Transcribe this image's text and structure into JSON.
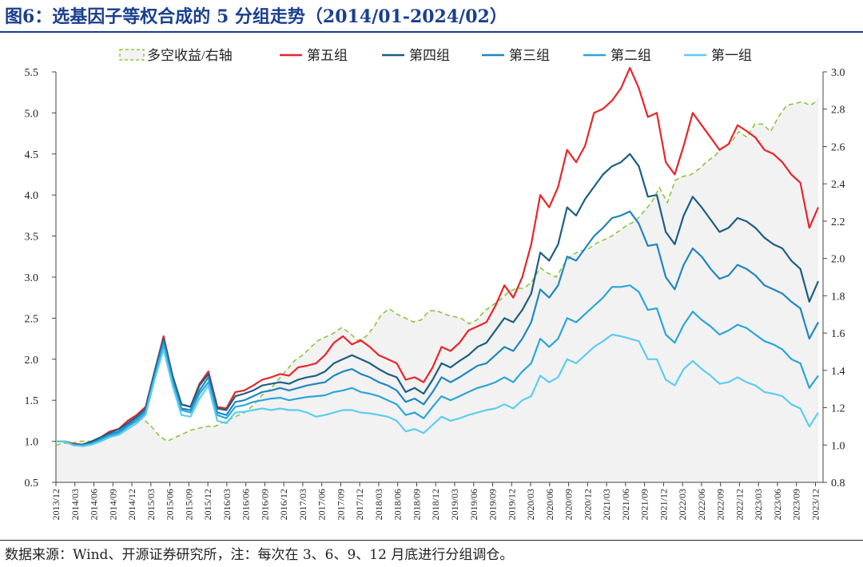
{
  "header": {
    "title": "图6：选基因子等权合成的 5 分组走势（2014/01-2024/02）"
  },
  "footer": {
    "source": "数据来源：Wind、开源证券研究所，注：每次在 3、6、9、12 月底进行分组调仓。"
  },
  "colors": {
    "group5": "#e8252a",
    "group4": "#1c5f82",
    "group3": "#1f86c0",
    "group2": "#2aa6d8",
    "group1": "#5ccdf0",
    "longshort": "#8cc63f",
    "area_fill": "#f2f2f2"
  },
  "chart_data": {
    "type": "line",
    "legend_position": "top",
    "grid": false,
    "ylim": [
      0.5,
      5.5
    ],
    "y_ticks": [
      "0.5",
      "1.0",
      "1.5",
      "2.0",
      "2.5",
      "3.0",
      "3.5",
      "4.0",
      "4.5",
      "5.0",
      "5.5"
    ],
    "y2lim": [
      0.8,
      3.0
    ],
    "y2_ticks": [
      "0.8",
      "1.0",
      "1.2",
      "1.4",
      "1.6",
      "1.8",
      "2.0",
      "2.2",
      "2.4",
      "2.6",
      "2.8",
      "3.0"
    ],
    "x_ticks": [
      "2013/12",
      "2014/03",
      "2014/06",
      "2014/09",
      "2014/12",
      "2015/03",
      "2015/06",
      "2015/09",
      "2015/12",
      "2016/03",
      "2016/06",
      "2016/09",
      "2016/12",
      "2017/03",
      "2017/06",
      "2017/09",
      "2017/12",
      "2018/03",
      "2018/06",
      "2018/09",
      "2018/12",
      "2019/03",
      "2019/06",
      "2019/09",
      "2019/12",
      "2020/03",
      "2020/06",
      "2020/09",
      "2020/12",
      "2021/03",
      "2021/06",
      "2021/09",
      "2021/12",
      "2022/03",
      "2022/06",
      "2022/09",
      "2022/12",
      "2023/03",
      "2023/06",
      "2023/09",
      "2023/12"
    ],
    "series": [
      {
        "name": "多空收益/右轴",
        "axis": "right",
        "kind": "area-dashed",
        "color": "#8cc63f",
        "values": [
          1.0,
          1.01,
          1.01,
          1.02,
          1.02,
          1.02,
          1.04,
          1.05,
          1.07,
          1.1,
          1.13,
          1.14,
          1.1,
          1.05,
          1.02,
          1.04,
          1.06,
          1.08,
          1.09,
          1.1,
          1.1,
          1.12,
          1.14,
          1.16,
          1.18,
          1.22,
          1.27,
          1.3,
          1.35,
          1.4,
          1.45,
          1.48,
          1.52,
          1.56,
          1.58,
          1.6,
          1.63,
          1.6,
          1.56,
          1.58,
          1.63,
          1.7,
          1.73,
          1.7,
          1.68,
          1.66,
          1.67,
          1.72,
          1.72,
          1.7,
          1.69,
          1.68,
          1.65,
          1.67,
          1.72,
          1.75,
          1.78,
          1.82,
          1.84,
          1.84,
          1.88,
          1.95,
          1.92,
          1.9,
          1.97,
          2.02,
          2.04,
          2.05,
          2.08,
          2.1,
          2.12,
          2.15,
          2.18,
          2.2,
          2.25,
          2.3,
          2.38,
          2.3,
          2.42,
          2.44,
          2.45,
          2.48,
          2.52,
          2.55,
          2.6,
          2.62,
          2.68,
          2.65,
          2.72,
          2.72,
          2.68,
          2.76,
          2.82,
          2.83,
          2.84,
          2.82,
          2.85
        ]
      },
      {
        "name": "第五组",
        "axis": "left",
        "kind": "line",
        "color": "#e8252a",
        "values": [
          1.0,
          1.0,
          0.97,
          0.96,
          1.0,
          1.05,
          1.12,
          1.15,
          1.25,
          1.32,
          1.42,
          1.85,
          2.28,
          1.8,
          1.45,
          1.42,
          1.7,
          1.85,
          1.42,
          1.4,
          1.6,
          1.62,
          1.68,
          1.75,
          1.78,
          1.82,
          1.8,
          1.9,
          1.92,
          1.95,
          2.05,
          2.2,
          2.28,
          2.18,
          2.23,
          2.15,
          2.05,
          2.0,
          1.95,
          1.75,
          1.78,
          1.72,
          1.9,
          2.15,
          2.1,
          2.2,
          2.35,
          2.4,
          2.45,
          2.65,
          2.9,
          2.75,
          3.0,
          3.4,
          4.0,
          3.85,
          4.1,
          4.55,
          4.4,
          4.6,
          5.0,
          5.05,
          5.15,
          5.3,
          5.55,
          5.3,
          4.95,
          5.0,
          4.4,
          4.25,
          4.6,
          5.0,
          4.85,
          4.7,
          4.55,
          4.62,
          4.85,
          4.78,
          4.7,
          4.55,
          4.5,
          4.4,
          4.25,
          4.15,
          3.6,
          3.85
        ]
      },
      {
        "name": "第四组",
        "axis": "left",
        "kind": "line",
        "color": "#1c5f82",
        "values": [
          1.0,
          1.0,
          0.96,
          0.96,
          1.0,
          1.05,
          1.1,
          1.15,
          1.22,
          1.3,
          1.4,
          1.85,
          2.25,
          1.8,
          1.45,
          1.42,
          1.68,
          1.82,
          1.4,
          1.38,
          1.55,
          1.58,
          1.62,
          1.68,
          1.7,
          1.72,
          1.7,
          1.75,
          1.78,
          1.8,
          1.85,
          1.95,
          2.0,
          2.05,
          2.0,
          1.95,
          1.88,
          1.82,
          1.78,
          1.6,
          1.65,
          1.58,
          1.75,
          1.95,
          1.9,
          1.98,
          2.05,
          2.15,
          2.2,
          2.35,
          2.5,
          2.45,
          2.6,
          2.8,
          3.3,
          3.2,
          3.4,
          3.85,
          3.75,
          3.95,
          4.1,
          4.25,
          4.35,
          4.4,
          4.5,
          4.35,
          3.98,
          4.0,
          3.55,
          3.4,
          3.75,
          3.98,
          3.85,
          3.7,
          3.55,
          3.6,
          3.72,
          3.68,
          3.6,
          3.48,
          3.4,
          3.35,
          3.2,
          3.1,
          2.7,
          2.95
        ]
      },
      {
        "name": "第三组",
        "axis": "left",
        "kind": "line",
        "color": "#1f86c0",
        "values": [
          1.0,
          1.0,
          0.96,
          0.95,
          0.98,
          1.03,
          1.08,
          1.12,
          1.2,
          1.28,
          1.38,
          1.8,
          2.22,
          1.75,
          1.4,
          1.38,
          1.62,
          1.78,
          1.35,
          1.32,
          1.48,
          1.5,
          1.55,
          1.6,
          1.62,
          1.65,
          1.62,
          1.65,
          1.68,
          1.7,
          1.72,
          1.8,
          1.85,
          1.88,
          1.82,
          1.78,
          1.72,
          1.68,
          1.62,
          1.48,
          1.52,
          1.45,
          1.6,
          1.78,
          1.72,
          1.78,
          1.85,
          1.92,
          1.95,
          2.05,
          2.15,
          2.1,
          2.25,
          2.45,
          2.85,
          2.75,
          2.9,
          3.25,
          3.2,
          3.35,
          3.5,
          3.6,
          3.72,
          3.75,
          3.8,
          3.65,
          3.38,
          3.4,
          3.0,
          2.85,
          3.15,
          3.35,
          3.25,
          3.1,
          2.98,
          3.02,
          3.15,
          3.1,
          3.02,
          2.9,
          2.85,
          2.8,
          2.7,
          2.62,
          2.25,
          2.45
        ]
      },
      {
        "name": "第二组",
        "axis": "left",
        "kind": "line",
        "color": "#2aa6d8",
        "values": [
          1.0,
          1.0,
          0.95,
          0.95,
          0.97,
          1.02,
          1.07,
          1.1,
          1.18,
          1.25,
          1.35,
          1.78,
          2.18,
          1.72,
          1.38,
          1.35,
          1.58,
          1.72,
          1.32,
          1.28,
          1.42,
          1.44,
          1.48,
          1.5,
          1.52,
          1.53,
          1.5,
          1.52,
          1.54,
          1.55,
          1.56,
          1.6,
          1.62,
          1.65,
          1.6,
          1.58,
          1.55,
          1.5,
          1.45,
          1.32,
          1.35,
          1.28,
          1.42,
          1.55,
          1.5,
          1.55,
          1.6,
          1.65,
          1.68,
          1.72,
          1.78,
          1.72,
          1.85,
          1.95,
          2.25,
          2.15,
          2.25,
          2.5,
          2.45,
          2.55,
          2.65,
          2.75,
          2.88,
          2.88,
          2.9,
          2.82,
          2.6,
          2.62,
          2.3,
          2.2,
          2.42,
          2.58,
          2.48,
          2.4,
          2.3,
          2.35,
          2.42,
          2.38,
          2.3,
          2.22,
          2.18,
          2.12,
          2.0,
          1.95,
          1.65,
          1.8
        ]
      },
      {
        "name": "第一组",
        "axis": "left",
        "kind": "line",
        "color": "#5ccdf0",
        "values": [
          1.0,
          1.0,
          0.95,
          0.94,
          0.96,
          1.0,
          1.05,
          1.08,
          1.15,
          1.22,
          1.32,
          1.75,
          2.12,
          1.68,
          1.32,
          1.3,
          1.52,
          1.68,
          1.25,
          1.22,
          1.35,
          1.36,
          1.38,
          1.4,
          1.38,
          1.4,
          1.38,
          1.38,
          1.35,
          1.3,
          1.32,
          1.35,
          1.38,
          1.38,
          1.35,
          1.34,
          1.32,
          1.3,
          1.25,
          1.12,
          1.15,
          1.1,
          1.2,
          1.3,
          1.25,
          1.28,
          1.32,
          1.35,
          1.38,
          1.4,
          1.45,
          1.4,
          1.5,
          1.55,
          1.8,
          1.72,
          1.78,
          2.0,
          1.95,
          2.05,
          2.15,
          2.22,
          2.3,
          2.28,
          2.25,
          2.22,
          2.0,
          2.0,
          1.75,
          1.68,
          1.88,
          1.98,
          1.88,
          1.8,
          1.7,
          1.72,
          1.78,
          1.72,
          1.68,
          1.6,
          1.58,
          1.55,
          1.45,
          1.4,
          1.18,
          1.35
        ]
      }
    ]
  }
}
